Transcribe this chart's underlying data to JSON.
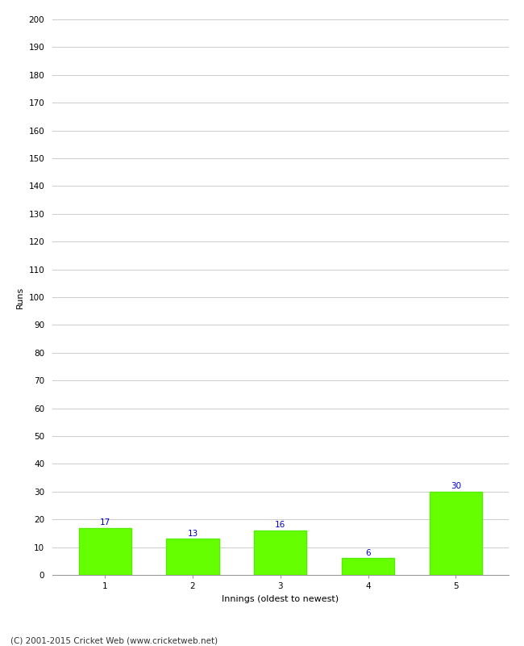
{
  "categories": [
    "1",
    "2",
    "3",
    "4",
    "5"
  ],
  "values": [
    17,
    13,
    16,
    6,
    30
  ],
  "bar_color": "#66ff00",
  "bar_edge_color": "#55ee00",
  "xlabel": "Innings (oldest to newest)",
  "ylabel": "Runs",
  "ylim": [
    0,
    200
  ],
  "yticks": [
    0,
    10,
    20,
    30,
    40,
    50,
    60,
    70,
    80,
    90,
    100,
    110,
    120,
    130,
    140,
    150,
    160,
    170,
    180,
    190,
    200
  ],
  "label_color": "#0000cc",
  "label_fontsize": 7.5,
  "axis_fontsize": 8,
  "tick_fontsize": 7.5,
  "footer_text": "(C) 2001-2015 Cricket Web (www.cricketweb.net)",
  "footer_fontsize": 7.5,
  "background_color": "#ffffff",
  "grid_color": "#cccccc",
  "bar_width": 0.6
}
